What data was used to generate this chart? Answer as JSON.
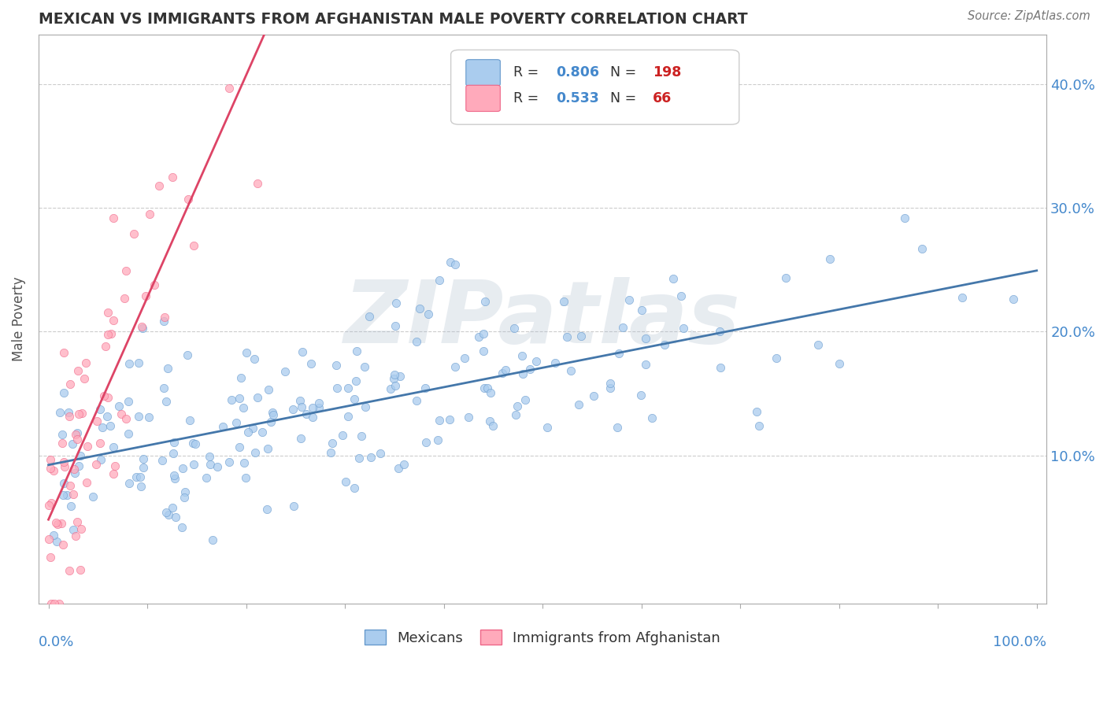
{
  "title": "MEXICAN VS IMMIGRANTS FROM AFGHANISTAN MALE POVERTY CORRELATION CHART",
  "source": "Source: ZipAtlas.com",
  "ylabel": "Male Poverty",
  "series": [
    {
      "name": "Mexicans",
      "R": 0.806,
      "N": 198,
      "color": "#aaccee",
      "edge_color": "#6699cc",
      "trend_color": "#4477aa",
      "seed": 42
    },
    {
      "name": "Immigrants from Afghanistan",
      "R": 0.533,
      "N": 66,
      "color": "#ffaabb",
      "edge_color": "#ee6688",
      "trend_color": "#dd4466",
      "seed": 7
    }
  ],
  "watermark": "ZIPatlas",
  "watermark_color": "#aabbcc",
  "bg_color": "#ffffff",
  "grid_color": "#cccccc",
  "title_color": "#333333",
  "axis_label_color": "#4488cc",
  "legend_R_color": "#4488cc",
  "legend_N_color": "#cc2222",
  "figsize": [
    14.06,
    8.92
  ],
  "dpi": 100
}
